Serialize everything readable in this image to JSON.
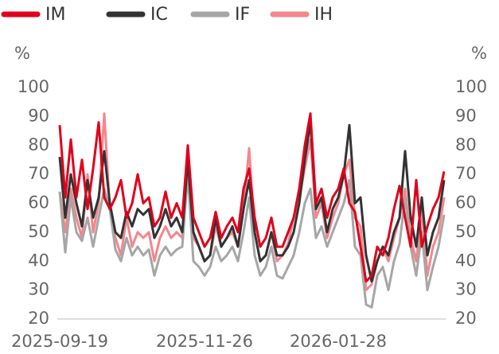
{
  "chart_data": {
    "type": "line",
    "categories": [
      "2025-09-19",
      null,
      null,
      null,
      null,
      null,
      null,
      null,
      null,
      null,
      null,
      null,
      null,
      null,
      null,
      null,
      null,
      null,
      null,
      null,
      null,
      null,
      null,
      null,
      null,
      null,
      "2025-11-26",
      null,
      null,
      null,
      null,
      null,
      null,
      null,
      null,
      null,
      null,
      null,
      null,
      null,
      null,
      null,
      null,
      null,
      null,
      null,
      null,
      null,
      null,
      null,
      "2026-01-28",
      null,
      null,
      null,
      null,
      null,
      null,
      null,
      null,
      null,
      null,
      null,
      null,
      null,
      null,
      null,
      null,
      null,
      null,
      null
    ],
    "series": [
      {
        "name": "IM",
        "color": "#e0001b",
        "values": [
          87,
          62,
          82,
          62,
          75,
          58,
          72,
          88,
          62,
          58,
          62,
          68,
          55,
          60,
          70,
          60,
          62,
          52,
          55,
          64,
          55,
          60,
          55,
          80,
          55,
          50,
          45,
          48,
          57,
          48,
          52,
          55,
          50,
          65,
          72,
          55,
          45,
          48,
          55,
          45,
          45,
          50,
          55,
          65,
          80,
          91,
          60,
          65,
          55,
          62,
          65,
          72,
          60,
          57,
          45,
          33,
          35,
          45,
          42,
          48,
          58,
          66,
          55,
          45,
          68,
          45,
          52,
          58,
          62,
          71
        ]
      },
      {
        "name": "IC",
        "color": "#333333",
        "values": [
          76,
          55,
          70,
          60,
          52,
          68,
          55,
          62,
          78,
          60,
          50,
          48,
          57,
          52,
          58,
          56,
          58,
          48,
          52,
          58,
          52,
          55,
          50,
          75,
          50,
          45,
          40,
          42,
          55,
          45,
          48,
          52,
          45,
          58,
          68,
          50,
          40,
          42,
          50,
          42,
          42,
          45,
          50,
          60,
          75,
          88,
          58,
          62,
          50,
          58,
          62,
          70,
          87,
          60,
          62,
          42,
          33,
          40,
          45,
          42,
          50,
          55,
          78,
          55,
          45,
          62,
          42,
          50,
          55,
          68
        ]
      },
      {
        "name": "IF",
        "color": "#a6a6a6",
        "values": [
          64,
          43,
          62,
          50,
          47,
          55,
          45,
          55,
          65,
          58,
          44,
          40,
          48,
          42,
          45,
          42,
          44,
          35,
          42,
          45,
          42,
          44,
          45,
          70,
          40,
          38,
          35,
          38,
          45,
          40,
          42,
          45,
          40,
          50,
          62,
          42,
          35,
          38,
          45,
          35,
          34,
          38,
          42,
          50,
          60,
          65,
          48,
          52,
          45,
          50,
          55,
          60,
          68,
          45,
          42,
          25,
          24,
          35,
          38,
          30,
          40,
          46,
          62,
          45,
          35,
          50,
          30,
          38,
          45,
          56
        ]
      },
      {
        "name": "IH",
        "color": "#f4868d",
        "values": [
          64,
          50,
          65,
          55,
          48,
          70,
          50,
          60,
          91,
          58,
          48,
          42,
          55,
          45,
          50,
          48,
          50,
          40,
          48,
          52,
          48,
          50,
          48,
          78,
          48,
          45,
          40,
          42,
          52,
          45,
          48,
          50,
          45,
          58,
          79,
          50,
          40,
          42,
          50,
          40,
          42,
          46,
          55,
          62,
          72,
          82,
          55,
          60,
          48,
          55,
          60,
          70,
          75,
          55,
          52,
          30,
          32,
          40,
          45,
          40,
          48,
          55,
          65,
          48,
          40,
          58,
          35,
          45,
          50,
          62
        ]
      }
    ],
    "y_label": "%",
    "y2_label": "%",
    "ylim": [
      20,
      100
    ],
    "yticks": [
      20,
      30,
      40,
      50,
      60,
      70,
      80,
      90,
      100
    ],
    "y2lim": [
      20,
      100
    ],
    "y2ticks": [
      20,
      30,
      40,
      50,
      60,
      70,
      80,
      90,
      100
    ],
    "legend": "top"
  }
}
